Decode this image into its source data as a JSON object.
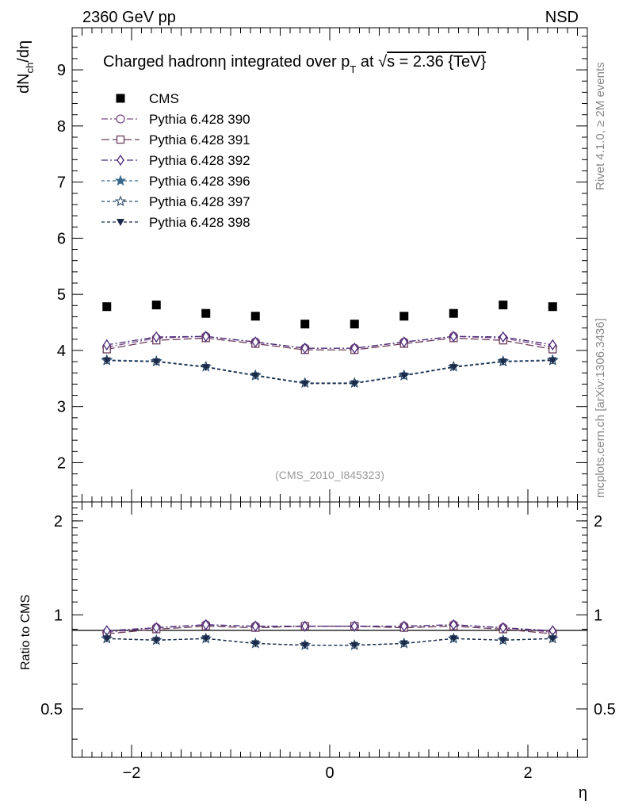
{
  "header": {
    "left": "2360 GeV pp",
    "right": "NSD"
  },
  "side_labels": {
    "rivet": "Rivet 4.1.0, ≥ 2M events",
    "mcplots": "mcplots.cern.ch [arXiv:1306.3436]"
  },
  "chart_data": [
    {
      "type": "scatter",
      "title": "Charged hadronη integrated over pT at √s = 2.36 {TeV}",
      "title_parts": {
        "a": "Charged hadronη integrated over p",
        "sub": "T",
        "b": " at ",
        "sqrt": "√",
        "c": "s = 2.36 {TeV}"
      },
      "analysis_label": "(CMS_2010_I845323)",
      "ylabel": "dNch/dη",
      "ylabel_parts": {
        "a": "dN",
        "sub": "ch",
        "b": "/dη"
      },
      "xlim": [
        -2.6,
        2.6
      ],
      "ylim": [
        1.3,
        9.75
      ],
      "yticks": [
        2,
        3,
        4,
        5,
        6,
        7,
        8,
        9
      ],
      "ytick_labels": [
        "2",
        "3",
        "4",
        "5",
        "6",
        "7",
        "8",
        "9"
      ],
      "x": [
        -2.25,
        -1.75,
        -1.25,
        -0.75,
        -0.25,
        0.25,
        0.75,
        1.25,
        1.75,
        2.25
      ],
      "series": [
        {
          "name": "CMS",
          "marker": "square-filled",
          "color": "#000000",
          "dash": "none",
          "values": [
            4.78,
            4.81,
            4.66,
            4.61,
            4.47,
            4.47,
            4.61,
            4.66,
            4.81,
            4.78
          ]
        },
        {
          "name": "Pythia 6.428 390",
          "marker": "circle-open",
          "color": "#7a4a8a",
          "dash": "8,3,2,3",
          "values": [
            4.06,
            4.22,
            4.25,
            4.15,
            4.04,
            4.04,
            4.15,
            4.25,
            4.22,
            4.06
          ]
        },
        {
          "name": "Pythia 6.428 391",
          "marker": "square-open",
          "color": "#6a3a5a",
          "dash": "10,4",
          "values": [
            4.02,
            4.18,
            4.22,
            4.12,
            4.01,
            4.01,
            4.12,
            4.22,
            4.18,
            4.02
          ]
        },
        {
          "name": "Pythia 6.428 392",
          "marker": "diamond-open",
          "color": "#4a2a7a",
          "dash": "8,3,2,3",
          "values": [
            4.1,
            4.24,
            4.25,
            4.15,
            4.04,
            4.04,
            4.15,
            4.25,
            4.24,
            4.1
          ]
        },
        {
          "name": "Pythia 6.428 396",
          "marker": "star-filled",
          "color": "#3a6a8a",
          "dash": "4,3",
          "values": [
            3.83,
            3.81,
            3.71,
            3.56,
            3.42,
            3.42,
            3.56,
            3.71,
            3.81,
            3.83
          ]
        },
        {
          "name": "Pythia 6.428 397",
          "marker": "star-open",
          "color": "#2a4a6a",
          "dash": "4,3",
          "values": [
            3.82,
            3.8,
            3.71,
            3.55,
            3.42,
            3.42,
            3.55,
            3.71,
            3.8,
            3.82
          ]
        },
        {
          "name": "Pythia 6.428 398",
          "marker": "triangle-down-filled",
          "color": "#1a2a4a",
          "dash": "4,3",
          "values": [
            3.82,
            3.8,
            3.7,
            3.55,
            3.41,
            3.41,
            3.55,
            3.7,
            3.8,
            3.82
          ]
        }
      ]
    },
    {
      "type": "scatter",
      "title": "",
      "xlabel": "η",
      "ylabel": "Ratio to CMS",
      "xlim": [
        -2.6,
        2.6
      ],
      "ylim": [
        0.35,
        2.3
      ],
      "xticks": [
        -2,
        0,
        2
      ],
      "xtick_labels": [
        "−2",
        "0",
        "2"
      ],
      "yticks": [
        0.5,
        1,
        2
      ],
      "ytick_labels": [
        "0.5",
        "1",
        "2"
      ],
      "x": [
        -2.25,
        -1.75,
        -1.25,
        -0.75,
        -0.25,
        0.25,
        0.75,
        1.25,
        1.75,
        2.25
      ],
      "series": [
        {
          "name": "Pythia 6.428 390",
          "values": [
            0.88,
            0.91,
            0.93,
            0.92,
            0.92,
            0.92,
            0.92,
            0.93,
            0.91,
            0.88
          ]
        },
        {
          "name": "Pythia 6.428 391",
          "values": [
            0.87,
            0.9,
            0.92,
            0.91,
            0.92,
            0.92,
            0.91,
            0.92,
            0.9,
            0.87
          ]
        },
        {
          "name": "Pythia 6.428 392",
          "values": [
            0.89,
            0.91,
            0.93,
            0.92,
            0.92,
            0.92,
            0.92,
            0.93,
            0.91,
            0.89
          ]
        },
        {
          "name": "Pythia 6.428 396",
          "values": [
            0.84,
            0.83,
            0.84,
            0.81,
            0.8,
            0.8,
            0.81,
            0.84,
            0.83,
            0.84
          ]
        },
        {
          "name": "Pythia 6.428 397",
          "values": [
            0.84,
            0.83,
            0.84,
            0.81,
            0.8,
            0.8,
            0.81,
            0.84,
            0.83,
            0.84
          ]
        },
        {
          "name": "Pythia 6.428 398",
          "values": [
            0.84,
            0.83,
            0.84,
            0.81,
            0.8,
            0.8,
            0.81,
            0.84,
            0.83,
            0.84
          ]
        }
      ]
    }
  ]
}
